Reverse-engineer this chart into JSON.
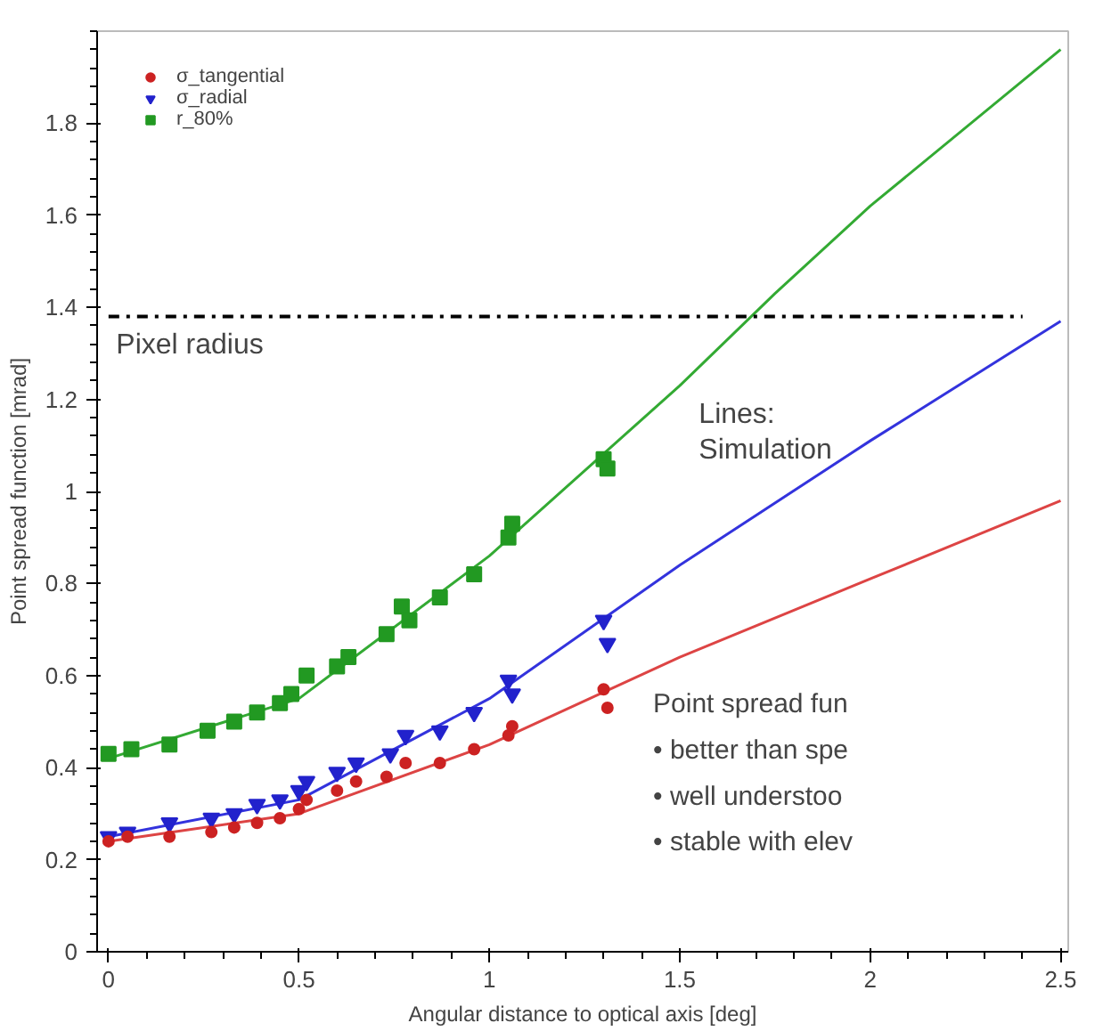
{
  "chart_data": {
    "type": "scatter",
    "xlabel": "Angular distance to optical axis [deg]",
    "ylabel": "Point spread function [mrad]",
    "xlim": [
      -0.03,
      2.52
    ],
    "ylim": [
      0,
      2.0
    ],
    "xticks": [
      0,
      0.5,
      1,
      1.5,
      2,
      2.5
    ],
    "yticks": [
      0,
      0.2,
      0.4,
      0.6,
      0.8,
      1,
      1.2,
      1.4,
      1.6,
      1.8
    ],
    "grid": false,
    "legend": "top left",
    "series": [
      {
        "name": "σ_tangential",
        "color": "#cc2222",
        "marker": "circle",
        "x": [
          0,
          0.05,
          0.16,
          0.27,
          0.33,
          0.39,
          0.45,
          0.5,
          0.52,
          0.6,
          0.65,
          0.73,
          0.78,
          0.87,
          0.96,
          1.05,
          1.06,
          1.3,
          1.31
        ],
        "values": [
          0.24,
          0.25,
          0.25,
          0.26,
          0.27,
          0.28,
          0.29,
          0.31,
          0.33,
          0.35,
          0.37,
          0.38,
          0.41,
          0.41,
          0.44,
          0.47,
          0.49,
          0.57,
          0.53
        ]
      },
      {
        "name": "σ_radial",
        "color": "#2222cc",
        "marker": "triangle",
        "x": [
          0,
          0.05,
          0.16,
          0.27,
          0.33,
          0.39,
          0.45,
          0.5,
          0.52,
          0.6,
          0.65,
          0.74,
          0.78,
          0.87,
          0.96,
          1.05,
          1.06,
          1.3,
          1.31
        ],
        "values": [
          0.25,
          0.26,
          0.28,
          0.29,
          0.3,
          0.32,
          0.33,
          0.35,
          0.37,
          0.39,
          0.41,
          0.43,
          0.47,
          0.48,
          0.52,
          0.59,
          0.56,
          0.72,
          0.67
        ]
      },
      {
        "name": "r_80%",
        "color": "#229922",
        "marker": "square",
        "x": [
          0,
          0.06,
          0.16,
          0.26,
          0.33,
          0.39,
          0.45,
          0.48,
          0.52,
          0.6,
          0.63,
          0.73,
          0.77,
          0.79,
          0.87,
          0.96,
          1.05,
          1.06,
          1.3,
          1.31
        ],
        "values": [
          0.43,
          0.44,
          0.45,
          0.48,
          0.5,
          0.52,
          0.54,
          0.56,
          0.6,
          0.62,
          0.64,
          0.69,
          0.75,
          0.72,
          0.77,
          0.82,
          0.9,
          0.93,
          1.07,
          1.05
        ]
      },
      {
        "type": "line",
        "color": "#dd4444",
        "x": [
          0,
          0.5,
          1,
          1.5,
          2,
          2.5
        ],
        "values": [
          0.24,
          0.3,
          0.45,
          0.64,
          0.81,
          0.98
        ]
      },
      {
        "type": "line",
        "color": "#3333dd",
        "x": [
          0,
          0.5,
          1,
          1.5,
          2,
          2.5
        ],
        "values": [
          0.25,
          0.33,
          0.55,
          0.84,
          1.11,
          1.37
        ]
      },
      {
        "type": "line",
        "color": "#33aa33",
        "x": [
          0,
          0.5,
          1,
          1.5,
          1.75,
          2,
          2.5
        ],
        "values": [
          0.42,
          0.55,
          0.86,
          1.23,
          1.43,
          1.62,
          1.96
        ]
      }
    ],
    "ref_lines": [
      {
        "axis": "y",
        "value": 1.38,
        "label": "Pixel radius",
        "color": "#000000",
        "line_style": "dashdot"
      }
    ],
    "annotations": [
      "Lines:\nSimulation",
      "Point spread fun",
      "• better than spe",
      "• well understoo",
      "• stable with elev"
    ]
  }
}
